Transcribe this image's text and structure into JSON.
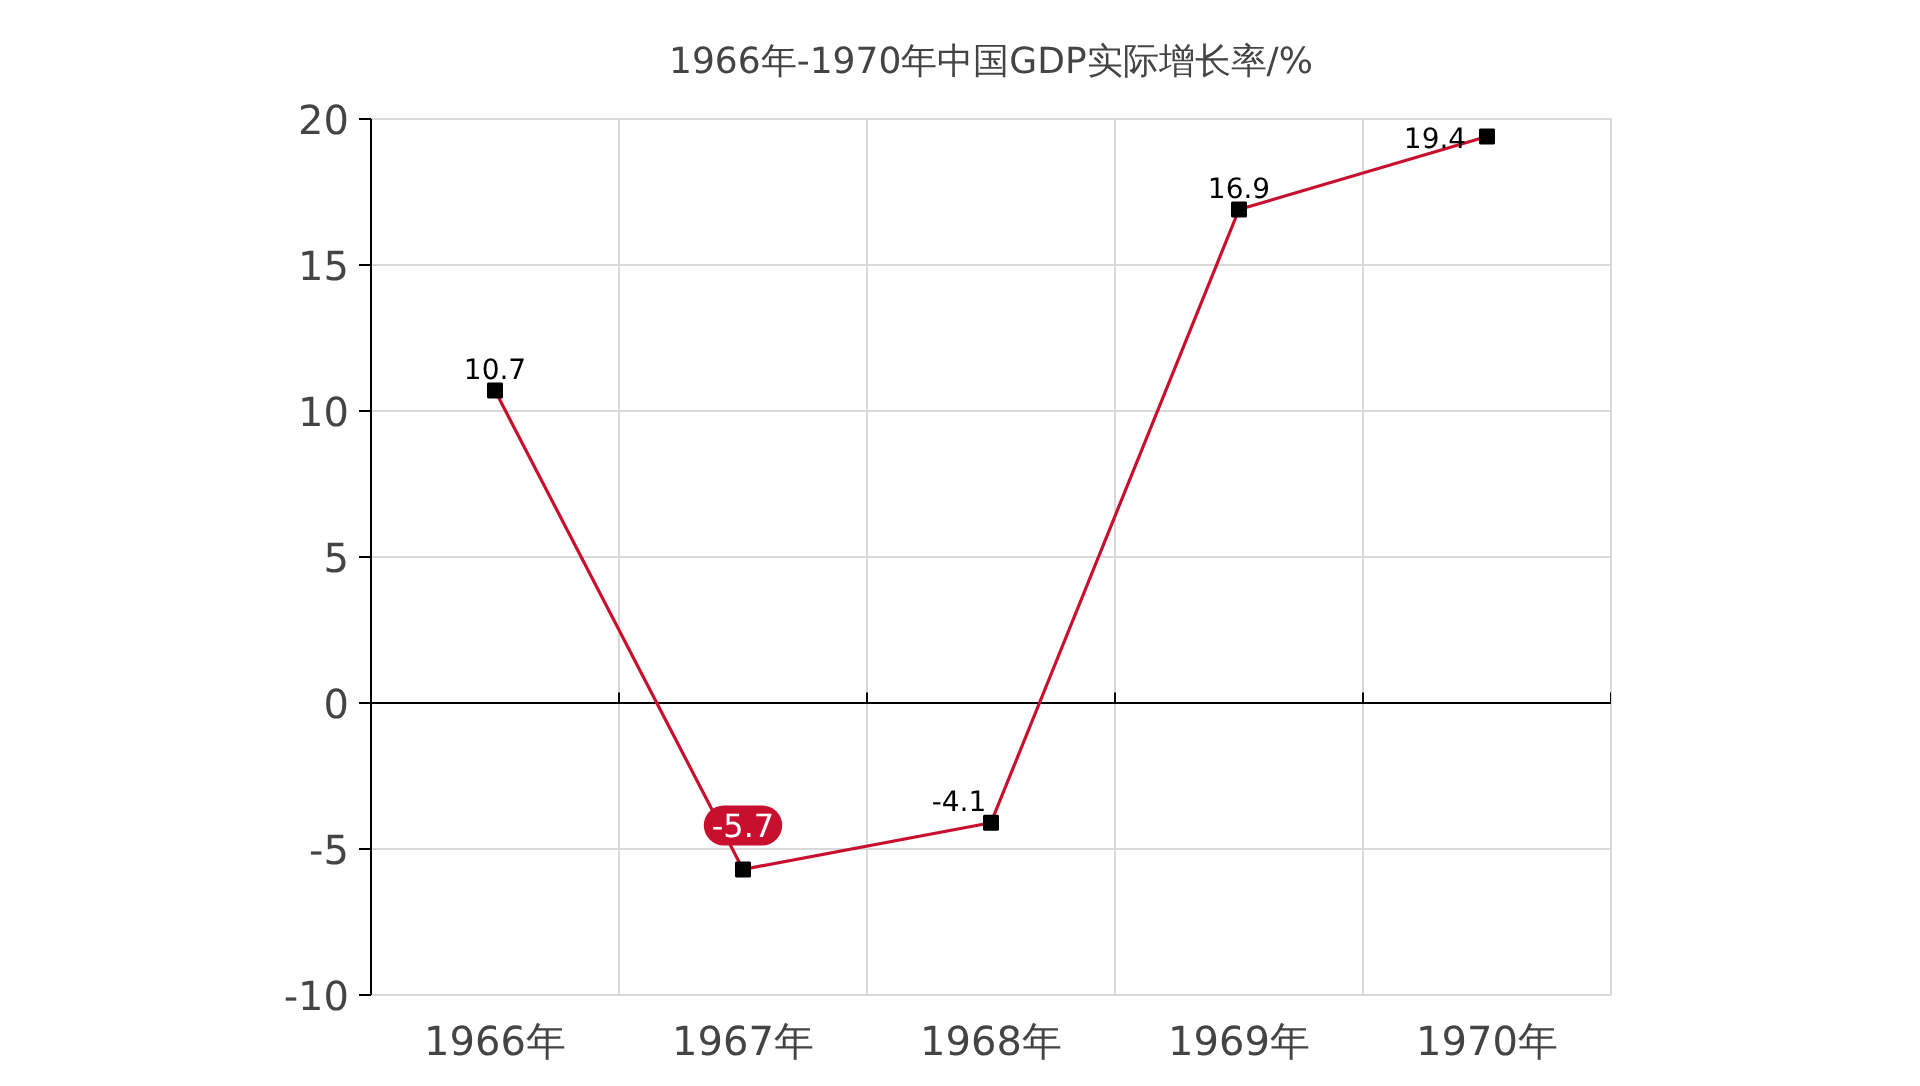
{
  "chart_data": {
    "type": "line",
    "title": "1966年-1970年中国GDP实际增长率/%",
    "categories": [
      "1966年",
      "1967年",
      "1968年",
      "1969年",
      "1970年"
    ],
    "series": [
      {
        "color": "#c8102e",
        "values": [
          10.7,
          -5.7,
          -4.1,
          16.9,
          19.4
        ]
      }
    ],
    "ylim": [
      -10,
      20
    ],
    "yticks": [
      -10,
      -5,
      0,
      5,
      10,
      15,
      20
    ],
    "grid": true,
    "marker": "square",
    "line_style": "solid",
    "data_labels": true
  }
}
